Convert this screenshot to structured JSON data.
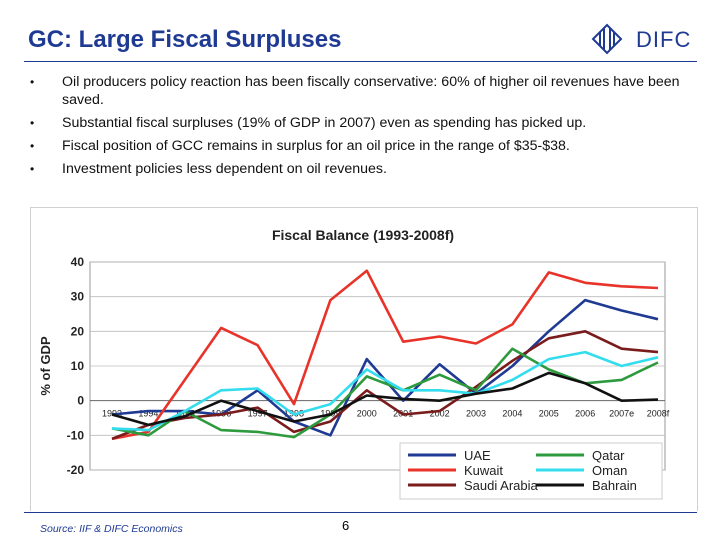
{
  "header": {
    "title": "GC: Large Fiscal Surpluses",
    "logo_text": "DIFC"
  },
  "bullets": [
    "Oil producers policy reaction has been fiscally conservative: 60% of higher oil revenues have been saved.",
    "Substantial fiscal surpluses (19% of GDP in 2007) even as spending has picked up.",
    "Fiscal position of GCC remains in surplus for an oil price in the range of $35-$38.",
    "Investment policies less dependent on oil revenues."
  ],
  "bullet_glyph": "•",
  "footer": {
    "source": "Source: IIF & DIFC Economics",
    "page_number": "6"
  },
  "chart_data": {
    "type": "line",
    "title": "Fiscal Balance (1993-2008f)",
    "xlabel": "",
    "ylabel": "% of GDP",
    "ylim": [
      -20,
      40
    ],
    "yticks": [
      -20,
      -10,
      0,
      10,
      20,
      30,
      40
    ],
    "grid": true,
    "legend_position": "bottom-right",
    "categories": [
      "1993",
      "1994",
      "1995",
      "1996",
      "1997",
      "1998",
      "1999",
      "2000",
      "2001",
      "2002",
      "2003",
      "2004",
      "2005",
      "2006",
      "2007e",
      "2008f"
    ],
    "series": [
      {
        "name": "UAE",
        "color": "#1f3a93",
        "values": [
          -4,
          -3,
          -3,
          -4,
          3,
          -6,
          -10,
          12,
          0,
          10.5,
          2,
          10,
          20,
          29,
          26,
          23.5
        ]
      },
      {
        "name": "Kuwait",
        "color": "#e8332a",
        "values": [
          -11,
          -9,
          6,
          21,
          16,
          -1,
          29,
          37.5,
          17,
          18.5,
          16.5,
          22,
          37,
          34,
          33,
          32.5
        ]
      },
      {
        "name": "Saudi Arabia",
        "color": "#7a1c1c",
        "values": [
          -11,
          -7,
          -5,
          -4,
          -2,
          -9,
          -6,
          3,
          -4,
          -3,
          4,
          11.5,
          18,
          20,
          15,
          14
        ]
      },
      {
        "name": "Qatar",
        "color": "#2e9a3e",
        "values": [
          -8,
          -10,
          -3,
          -8.5,
          -9,
          -10.5,
          -4,
          7,
          3,
          7.5,
          3,
          15,
          9,
          5,
          6,
          11
        ]
      },
      {
        "name": "Oman",
        "color": "#33ddee",
        "values": [
          -8,
          -8.5,
          -3,
          3,
          3.5,
          -4,
          -1,
          9,
          3,
          3,
          2,
          6,
          12,
          14,
          10,
          12.5
        ]
      },
      {
        "name": "Bahrain",
        "color": "#111111",
        "values": [
          -4,
          -7,
          -4.5,
          0,
          -3,
          -6,
          -4,
          1.5,
          0.5,
          0,
          2,
          3.5,
          8,
          5,
          0,
          0.3
        ]
      }
    ]
  }
}
